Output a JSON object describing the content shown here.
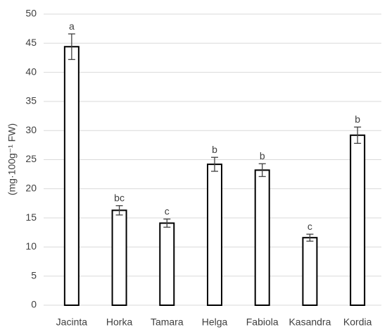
{
  "chart_data": {
    "type": "bar",
    "y_label": "(mg·100g⁻¹ FW)",
    "categories": [
      "Jacinta",
      "Horka",
      "Tamara",
      "Helga",
      "Fabiola",
      "Kasandra",
      "Kordia"
    ],
    "values": [
      44.4,
      16.3,
      14.1,
      24.2,
      23.2,
      11.6,
      29.2
    ],
    "errors": [
      2.2,
      0.8,
      0.7,
      1.2,
      1.1,
      0.6,
      1.4
    ],
    "annotations": [
      "a",
      "bc",
      "c",
      "b",
      "b",
      "c",
      "b"
    ],
    "color": "#ffffff",
    "edge_color": "#000000",
    "ylim": [
      0,
      50
    ],
    "yticks": [
      0,
      5,
      10,
      15,
      20,
      25,
      30,
      35,
      40,
      45,
      50
    ],
    "grid": true
  }
}
